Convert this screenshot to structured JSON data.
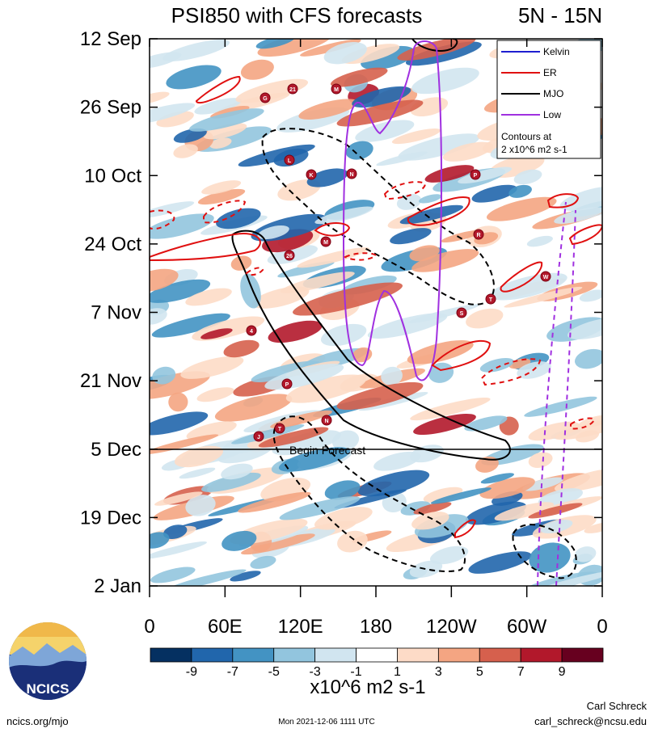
{
  "chart_data": {
    "type": "heatmap",
    "title": "PSI850 with CFS forecasts",
    "region": "5N - 15N",
    "x_ticks": [
      "0",
      "60E",
      "120E",
      "180",
      "120W",
      "60W",
      "0"
    ],
    "y_ticks": [
      "12 Sep",
      "26 Sep",
      "10 Oct",
      "24 Oct",
      "7 Nov",
      "21 Nov",
      "5 Dec",
      "19 Dec",
      "2 Jan"
    ],
    "xlim": [
      0,
      360
    ],
    "time_range": [
      "12 Sep",
      "2 Jan"
    ],
    "forecast_line": "5 Dec",
    "forecast_label": "Begin Forecast",
    "colorbar_labels": [
      "-9",
      "-7",
      "-5",
      "-3",
      "-1",
      "1",
      "3",
      "5",
      "7",
      "9"
    ],
    "colorbar_colors": [
      "#053061",
      "#2166ac",
      "#4393c3",
      "#92c5de",
      "#d1e5f0",
      "#ffffff",
      "#fddbc7",
      "#f4a582",
      "#d6604d",
      "#b2182b",
      "#67001f"
    ],
    "units": "x10^6 m2 s-1",
    "legend": [
      {
        "name": "Kelvin",
        "color": "#1f1fd0"
      },
      {
        "name": "ER",
        "color": "#e01010"
      },
      {
        "name": "MJO",
        "color": "#000000"
      },
      {
        "name": "Low",
        "color": "#a030e0"
      }
    ],
    "legend_note_1": "Contours at",
    "legend_note_2": "2 x10^6 m2 s-1",
    "storm_markers": [
      "G",
      "21",
      "M",
      "L",
      "K",
      "N",
      "P",
      "R",
      "M",
      "26",
      "W",
      "T",
      "S",
      "4",
      "P",
      "T",
      "N",
      "J"
    ]
  },
  "footer": {
    "logo_text": "NCICS",
    "url": "ncics.org/mjo",
    "timestamp": "Mon 2021-12-06 1111 UTC",
    "author": "Carl Schreck",
    "email": "carl_schreck@ncsu.edu"
  }
}
